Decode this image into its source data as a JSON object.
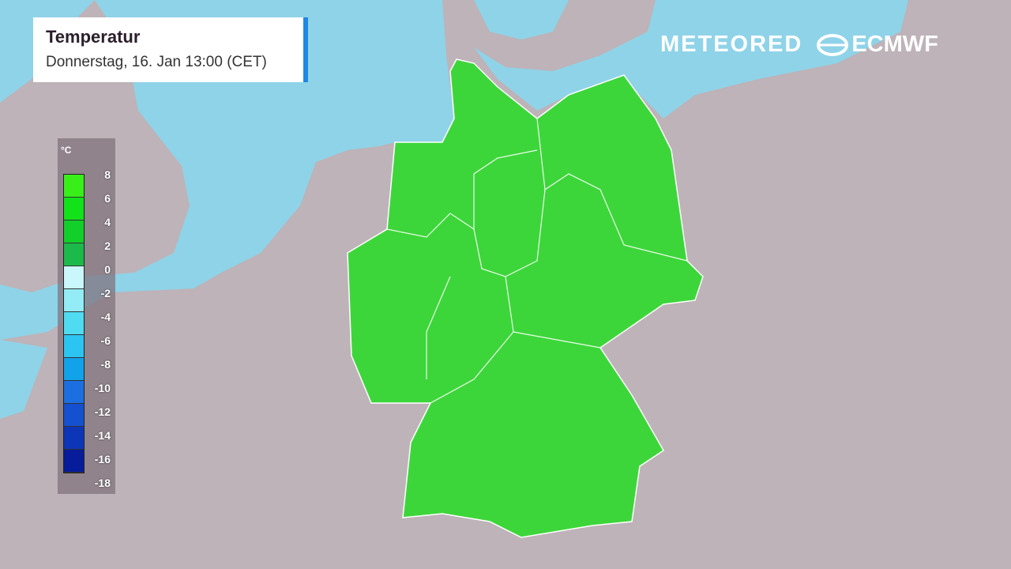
{
  "header": {
    "title": "Temperatur",
    "subtitle": "Donnerstag, 16. Jan 13:00 (CET)"
  },
  "logos": {
    "meteored": "METEORED",
    "ecmwf": "ECMWF"
  },
  "legend": {
    "unit": "°C",
    "labels": [
      "8",
      "6",
      "4",
      "2",
      "0",
      "-2",
      "-4",
      "-6",
      "-8",
      "-10",
      "-12",
      "-14",
      "-16",
      "-18"
    ],
    "colors": [
      "#39ef1a",
      "#12e21a",
      "#12cf2a",
      "#1cba4a",
      "#c9f7fb",
      "#94ecf6",
      "#4fdcf2",
      "#2cc4f0",
      "#12a2ea",
      "#1b6fe0",
      "#1450cf",
      "#0d35b8",
      "#061c9a"
    ]
  },
  "colors": {
    "land": "#bdb3b8",
    "sea": "#8fd3e8",
    "germany": "#3dd63a",
    "accent": "#1e88e5"
  }
}
